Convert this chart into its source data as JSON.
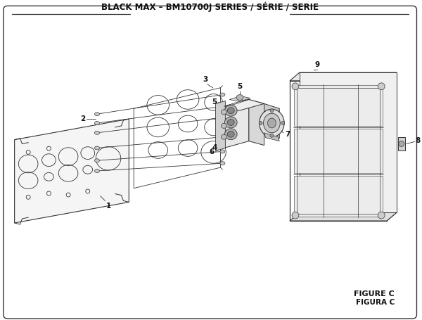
{
  "title": "BLACK MAX – BM10700J SERIES / SÉRIE / SERIE",
  "figure_label": "FIGURE C",
  "figura_label": "FIGURA C",
  "bg_color": "#ffffff",
  "line_color": "#333333",
  "text_color": "#111111",
  "title_fontsize": 8.5,
  "label_fontsize": 7.5,
  "figure_label_fontsize": 8
}
